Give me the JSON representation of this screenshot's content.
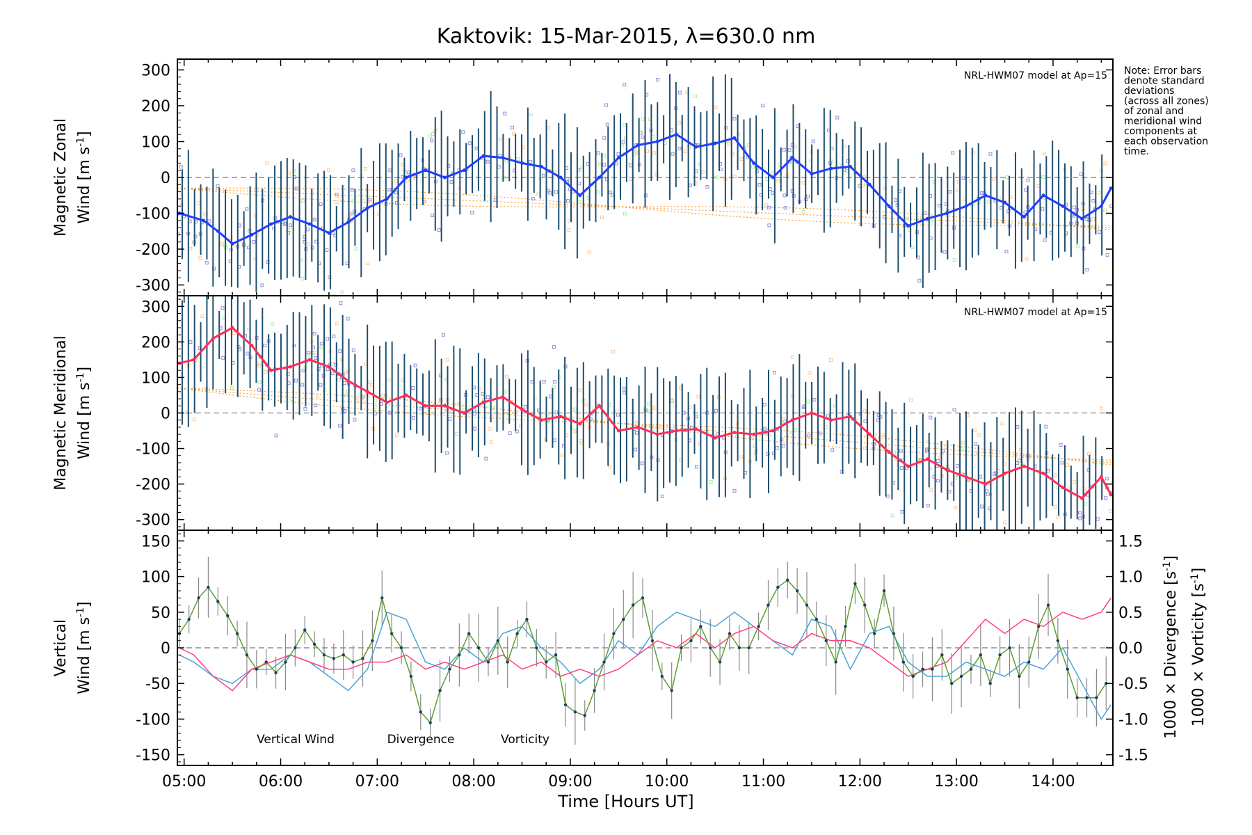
{
  "title": "Kaktovik: 15-Mar-2015, λ=630.0 nm",
  "note_lines": [
    "Note: Error bars",
    "denote standard",
    "deviations",
    "(across all zones)",
    "of zonal and",
    "meridional wind",
    "components at",
    "each observation",
    "time."
  ],
  "model_label": "NRL-HWM07 model at Ap=15",
  "x_label": "Time [Hours UT]",
  "x_ticks": [
    "05:00",
    "06:00",
    "07:00",
    "08:00",
    "09:00",
    "10:00",
    "11:00",
    "12:00",
    "13:00",
    "14:00"
  ],
  "colors": {
    "zonal": "#1f3fff",
    "meridional": "#ff2d5a",
    "vertical": "#5aa02c",
    "divergence": "#4aa3d8",
    "vorticity": "#ff3f7f",
    "errorbar": "#1f4f6f",
    "model": "#ff9a2a",
    "scatter_blue": "#8f8fd8",
    "scatter_orange": "#ffc890",
    "scatter_green": "#a8f0a0"
  },
  "chart_data": [
    {
      "type": "line",
      "panel": "zonal",
      "ylabel_line1": "Magnetic Zonal",
      "ylabel_line2": "Wind [m s",
      "ylabel_sup": "-1",
      "ylabel_close": "]",
      "xlim": [
        4.93,
        14.62
      ],
      "ylim": [
        -330,
        330
      ],
      "y_ticks": [
        300,
        200,
        100,
        0,
        -100,
        -200,
        -300
      ],
      "x": [
        4.95,
        5.2,
        5.35,
        5.5,
        5.7,
        5.9,
        6.1,
        6.3,
        6.5,
        6.7,
        6.9,
        7.1,
        7.3,
        7.5,
        7.7,
        7.9,
        8.1,
        8.3,
        8.5,
        8.7,
        8.9,
        9.1,
        9.3,
        9.5,
        9.7,
        9.9,
        10.1,
        10.3,
        10.5,
        10.7,
        10.9,
        11.1,
        11.3,
        11.5,
        11.7,
        11.9,
        12.1,
        12.3,
        12.5,
        12.7,
        12.9,
        13.1,
        13.3,
        13.5,
        13.7,
        13.9,
        14.1,
        14.3,
        14.5,
        14.6
      ],
      "y": [
        -100,
        -120,
        -150,
        -185,
        -160,
        -130,
        -110,
        -130,
        -155,
        -125,
        -85,
        -60,
        0,
        20,
        0,
        20,
        60,
        55,
        40,
        30,
        0,
        -50,
        0,
        55,
        90,
        100,
        120,
        85,
        95,
        110,
        40,
        0,
        55,
        10,
        25,
        30,
        -20,
        -80,
        -135,
        -115,
        -100,
        -80,
        -50,
        -70,
        -110,
        -50,
        -80,
        -115,
        -80,
        -30
      ]
    },
    {
      "type": "line",
      "panel": "meridional",
      "ylabel_line1": "Magnetic Meridional",
      "ylabel_line2": "Wind [m s",
      "ylabel_sup": "-1",
      "ylabel_close": "]",
      "xlim": [
        4.93,
        14.62
      ],
      "ylim": [
        -330,
        330
      ],
      "y_ticks": [
        300,
        200,
        100,
        0,
        -100,
        -200,
        -300
      ],
      "x": [
        4.95,
        5.1,
        5.3,
        5.5,
        5.7,
        5.9,
        6.1,
        6.3,
        6.5,
        6.7,
        6.9,
        7.1,
        7.3,
        7.5,
        7.7,
        7.9,
        8.1,
        8.3,
        8.5,
        8.7,
        8.9,
        9.1,
        9.3,
        9.5,
        9.7,
        9.9,
        10.1,
        10.3,
        10.5,
        10.7,
        10.9,
        11.1,
        11.3,
        11.5,
        11.7,
        11.9,
        12.1,
        12.3,
        12.5,
        12.7,
        12.9,
        13.1,
        13.3,
        13.5,
        13.7,
        13.9,
        14.1,
        14.3,
        14.5,
        14.6
      ],
      "y": [
        140,
        150,
        210,
        240,
        190,
        120,
        130,
        150,
        130,
        90,
        60,
        30,
        50,
        20,
        20,
        0,
        30,
        45,
        10,
        -20,
        -10,
        -30,
        20,
        -50,
        -40,
        -60,
        -50,
        -45,
        -70,
        -55,
        -60,
        -50,
        -20,
        0,
        -20,
        -10,
        -60,
        -110,
        -150,
        -130,
        -160,
        -180,
        -200,
        -170,
        -150,
        -170,
        -210,
        -240,
        -180,
        -230
      ]
    },
    {
      "type": "line",
      "panel": "vertical",
      "ylabel_line1": "Vertical",
      "ylabel_line2": "Wind [m s",
      "ylabel_sup": "-1",
      "ylabel_close": "]",
      "right_label_div": "1000 × Divergence [s",
      "right_label_vor": "1000 × Vorticity [s",
      "right_label_sup": "-1",
      "right_label_close": "]",
      "xlim": [
        4.93,
        14.62
      ],
      "ylim": [
        -165,
        165
      ],
      "y_ticks": [
        150,
        100,
        50,
        0,
        -50,
        -100,
        -150
      ],
      "y2lim": [
        -1.65,
        1.65
      ],
      "y2_ticks": [
        "1.5",
        "1.0",
        "0.5",
        "0.0",
        "-0.5",
        "-1.0",
        "-1.5"
      ],
      "y2_tick_values": [
        1.5,
        1.0,
        0.5,
        0.0,
        -0.5,
        -1.0,
        -1.5
      ],
      "legend": [
        "Vertical Wind",
        "Divergence",
        "Vorticity"
      ],
      "series": [
        {
          "name": "Vertical Wind",
          "x": [
            4.95,
            5.05,
            5.15,
            5.25,
            5.35,
            5.45,
            5.55,
            5.65,
            5.75,
            5.85,
            5.95,
            6.05,
            6.15,
            6.25,
            6.35,
            6.45,
            6.55,
            6.65,
            6.75,
            6.85,
            6.95,
            7.05,
            7.15,
            7.25,
            7.35,
            7.45,
            7.55,
            7.65,
            7.75,
            7.85,
            7.95,
            8.05,
            8.15,
            8.25,
            8.35,
            8.45,
            8.55,
            8.65,
            8.75,
            8.85,
            8.95,
            9.05,
            9.15,
            9.25,
            9.35,
            9.45,
            9.55,
            9.65,
            9.75,
            9.85,
            9.95,
            10.05,
            10.15,
            10.25,
            10.35,
            10.45,
            10.55,
            10.65,
            10.75,
            10.85,
            10.95,
            11.05,
            11.15,
            11.25,
            11.35,
            11.45,
            11.55,
            11.65,
            11.75,
            11.85,
            11.95,
            12.05,
            12.15,
            12.25,
            12.35,
            12.45,
            12.55,
            12.65,
            12.75,
            12.85,
            12.95,
            13.05,
            13.15,
            13.25,
            13.35,
            13.45,
            13.55,
            13.65,
            13.75,
            13.85,
            13.95,
            14.05,
            14.15,
            14.25,
            14.35,
            14.45,
            14.55
          ],
          "y": [
            20,
            40,
            70,
            85,
            65,
            45,
            20,
            -10,
            -30,
            -20,
            -35,
            -20,
            0,
            25,
            5,
            -10,
            -15,
            -10,
            -20,
            -15,
            10,
            70,
            20,
            0,
            -40,
            -90,
            -105,
            -60,
            -30,
            -10,
            20,
            0,
            -20,
            10,
            -20,
            20,
            40,
            0,
            -20,
            -10,
            -80,
            -90,
            -95,
            -60,
            -20,
            20,
            40,
            60,
            70,
            10,
            -40,
            -60,
            0,
            10,
            30,
            0,
            -20,
            20,
            0,
            0,
            30,
            60,
            85,
            95,
            80,
            60,
            40,
            10,
            -20,
            30,
            90,
            60,
            20,
            80,
            20,
            -20,
            -40,
            -30,
            -30,
            -10,
            -50,
            -40,
            -30,
            -10,
            -50,
            -10,
            0,
            -40,
            -20,
            30,
            60,
            10,
            -30,
            -70,
            -70,
            -70,
            -50
          ]
        },
        {
          "name": "Divergence",
          "x": [
            4.95,
            5.1,
            5.3,
            5.5,
            5.7,
            5.9,
            6.1,
            6.3,
            6.5,
            6.7,
            6.9,
            7.1,
            7.3,
            7.5,
            7.7,
            7.9,
            8.1,
            8.3,
            8.5,
            8.7,
            8.9,
            9.1,
            9.3,
            9.5,
            9.7,
            9.9,
            10.1,
            10.3,
            10.5,
            10.7,
            10.9,
            11.1,
            11.3,
            11.5,
            11.7,
            11.9,
            12.1,
            12.3,
            12.5,
            12.7,
            12.9,
            13.1,
            13.3,
            13.5,
            13.7,
            13.9,
            14.1,
            14.3,
            14.5,
            14.6
          ],
          "y": [
            -0.1,
            -0.2,
            -0.4,
            -0.5,
            -0.3,
            -0.3,
            -0.1,
            -0.2,
            -0.4,
            -0.6,
            -0.3,
            0.5,
            0.4,
            -0.2,
            -0.3,
            0.0,
            -0.2,
            0.2,
            0.3,
            0.0,
            -0.2,
            -0.5,
            -0.3,
            0.1,
            -0.1,
            0.3,
            0.5,
            0.4,
            0.3,
            0.5,
            0.3,
            0.1,
            -0.1,
            0.4,
            0.3,
            -0.3,
            0.2,
            0.3,
            -0.2,
            -0.4,
            -0.4,
            -0.2,
            -0.3,
            -0.4,
            -0.2,
            -0.3,
            0.0,
            -0.5,
            -1.0,
            -0.8
          ]
        },
        {
          "name": "Vorticity",
          "x": [
            4.95,
            5.1,
            5.3,
            5.5,
            5.7,
            5.9,
            6.1,
            6.3,
            6.5,
            6.7,
            6.9,
            7.1,
            7.3,
            7.5,
            7.7,
            7.9,
            8.1,
            8.3,
            8.5,
            8.7,
            8.9,
            9.1,
            9.3,
            9.5,
            9.7,
            9.9,
            10.1,
            10.3,
            10.5,
            10.7,
            10.9,
            11.1,
            11.3,
            11.5,
            11.7,
            11.9,
            12.1,
            12.3,
            12.5,
            12.7,
            12.9,
            13.1,
            13.3,
            13.5,
            13.7,
            13.9,
            14.1,
            14.3,
            14.5,
            14.6
          ],
          "y": [
            0.0,
            -0.1,
            -0.4,
            -0.6,
            -0.3,
            -0.2,
            -0.1,
            -0.2,
            -0.3,
            -0.3,
            -0.2,
            -0.2,
            -0.1,
            -0.3,
            -0.2,
            -0.3,
            -0.2,
            -0.1,
            -0.3,
            -0.2,
            -0.4,
            -0.3,
            -0.4,
            -0.3,
            -0.1,
            0.1,
            0.0,
            0.2,
            0.0,
            0.2,
            0.3,
            0.1,
            0.0,
            0.2,
            0.1,
            0.1,
            0.0,
            -0.2,
            -0.4,
            -0.3,
            -0.2,
            0.1,
            0.4,
            0.2,
            0.4,
            0.3,
            0.5,
            0.4,
            0.5,
            0.7
          ]
        }
      ]
    }
  ]
}
